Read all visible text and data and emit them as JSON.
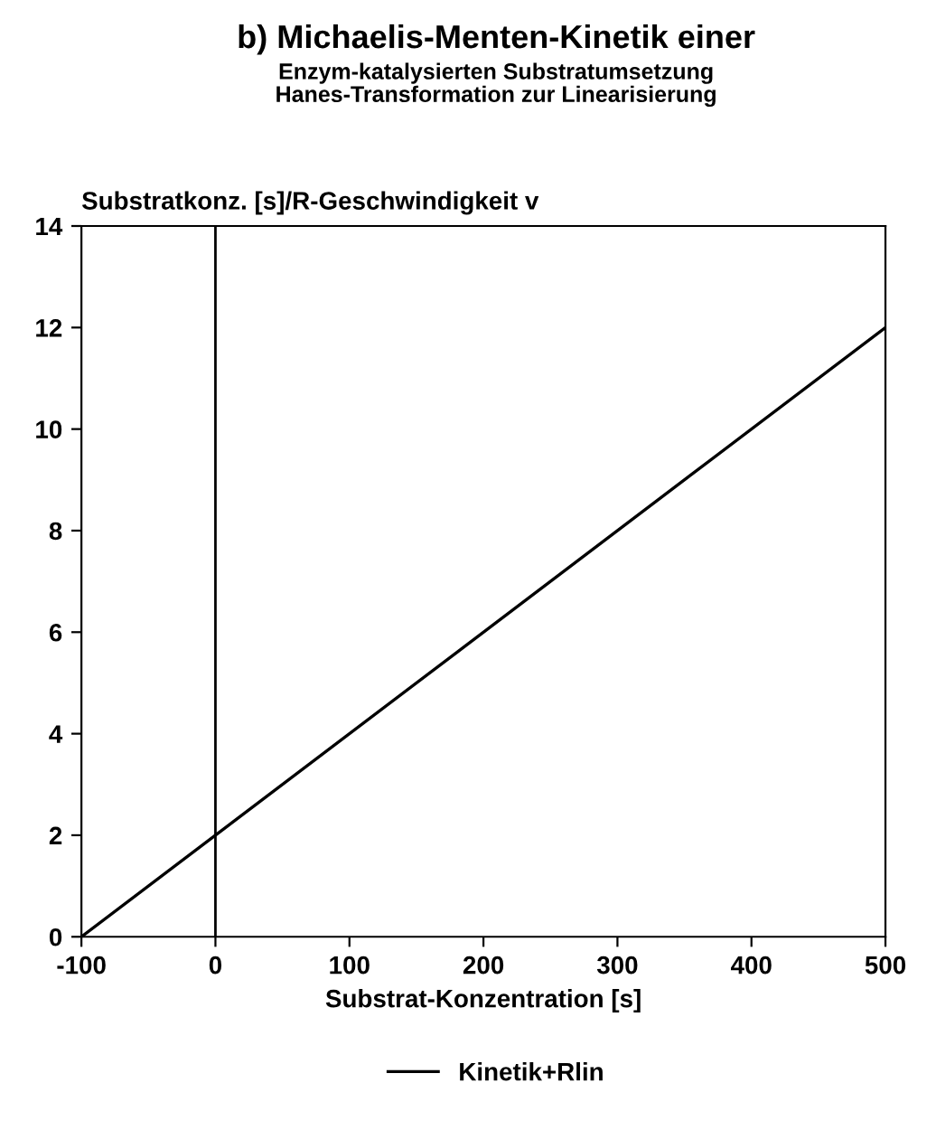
{
  "chart_data": {
    "type": "line",
    "title": "b) Michaelis-Menten-Kinetik einer",
    "subtitle": "Enzym-katalysierten Substratumsetzung\nHanes-Transformation zur Linearisierung",
    "xlabel": "Substrat-Konzentration [s]",
    "ylabel": "Substratkonz. [s]/R-Geschwindigkeit v",
    "series": [
      {
        "name": "Kinetik+Rlin",
        "color": "#000000",
        "x": [
          -100,
          500
        ],
        "values": [
          0,
          12
        ]
      }
    ],
    "xlim": [
      -100,
      500
    ],
    "xticks": [
      -100,
      0,
      100,
      200,
      300,
      400,
      500
    ],
    "ylim": [
      0,
      14
    ],
    "yticks": [
      0,
      2,
      4,
      6,
      8,
      10,
      12,
      14
    ],
    "ref_lines": [
      {
        "axis": "x",
        "value": 0,
        "color": "#000000"
      }
    ],
    "grid": false,
    "legend": "bottom",
    "marker": "none",
    "line_style": "solid"
  }
}
